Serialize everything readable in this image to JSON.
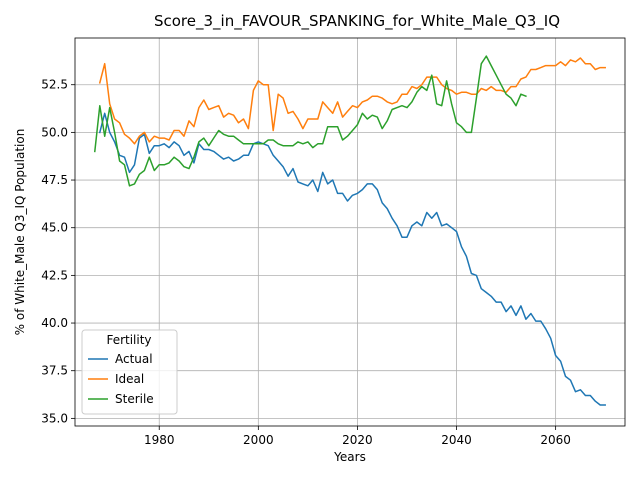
{
  "chart_data": {
    "type": "line",
    "title": "Score_3_in_FAVOUR_SPANKING_for_White_Male_Q3_IQ",
    "xlabel": "Years",
    "ylabel": "% of White_Male Q3_IQ Population",
    "xlim": [
      1963,
      2074
    ],
    "ylim": [
      34.6,
      54.95
    ],
    "xticks": [
      1980,
      2000,
      2020,
      2040,
      2060
    ],
    "xtick_labels": [
      "1980",
      "2000",
      "2020",
      "2040",
      "2060"
    ],
    "yticks": [
      35.0,
      37.5,
      40.0,
      42.5,
      45.0,
      47.5,
      50.0,
      52.5
    ],
    "ytick_labels": [
      "35.0",
      "37.5",
      "40.0",
      "42.5",
      "45.0",
      "47.5",
      "50.0",
      "52.5"
    ],
    "grid": true,
    "legend": {
      "title": "Fertility",
      "placement": "lower-left",
      "entries": [
        "Actual",
        "Ideal",
        "Sterile"
      ]
    },
    "series": [
      {
        "name": "Actual",
        "color": "#1f77b4",
        "x": [
          1968,
          1969,
          1970,
          1971,
          1972,
          1973,
          1974,
          1975,
          1976,
          1977,
          1978,
          1979,
          1980,
          1981,
          1982,
          1983,
          1984,
          1985,
          1986,
          1987,
          1988,
          1989,
          1990,
          1991,
          1992,
          1993,
          1994,
          1995,
          1996,
          1997,
          1998,
          1999,
          2000,
          2001,
          2002,
          2003,
          2004,
          2005,
          2006,
          2007,
          2008,
          2009,
          2010,
          2011,
          2012,
          2013,
          2014,
          2015,
          2016,
          2017,
          2018,
          2019,
          2020,
          2021,
          2022,
          2023,
          2024,
          2025,
          2026,
          2027,
          2028,
          2029,
          2030,
          2031,
          2032,
          2033,
          2034,
          2035,
          2036,
          2037,
          2038,
          2039,
          2040,
          2041,
          2042,
          2043,
          2044,
          2045,
          2046,
          2047,
          2048,
          2049,
          2050,
          2051,
          2052,
          2053,
          2054,
          2055,
          2056,
          2057,
          2058,
          2059,
          2060,
          2061,
          2062,
          2063,
          2064,
          2065,
          2066,
          2067,
          2068,
          2069,
          2070
        ],
        "y": [
          50.0,
          51.0,
          50.0,
          49.5,
          48.8,
          48.7,
          47.9,
          48.3,
          49.7,
          49.9,
          48.9,
          49.3,
          49.3,
          49.4,
          49.2,
          49.5,
          49.3,
          48.8,
          49.0,
          48.4,
          49.4,
          49.1,
          49.1,
          49.0,
          48.8,
          48.6,
          48.7,
          48.5,
          48.6,
          48.8,
          48.8,
          49.4,
          49.5,
          49.4,
          49.3,
          48.8,
          48.5,
          48.2,
          47.7,
          48.1,
          47.4,
          47.3,
          47.2,
          47.5,
          46.9,
          47.9,
          47.3,
          47.5,
          46.8,
          46.8,
          46.4,
          46.7,
          46.8,
          47.0,
          47.3,
          47.3,
          47.0,
          46.3,
          46.0,
          45.5,
          45.1,
          44.5,
          44.5,
          45.1,
          45.3,
          45.1,
          45.8,
          45.5,
          45.8,
          45.1,
          45.2,
          45.0,
          44.8,
          44.0,
          43.5,
          42.6,
          42.5,
          41.8,
          41.6,
          41.4,
          41.1,
          41.1,
          40.6,
          40.9,
          40.4,
          40.9,
          40.2,
          40.5,
          40.1,
          40.1,
          39.7,
          39.2,
          38.3,
          38.0,
          37.2,
          37.0,
          36.4,
          36.5,
          36.2,
          36.2,
          35.9,
          35.7,
          35.7
        ]
      },
      {
        "name": "Ideal",
        "color": "#ff7f0e",
        "x": [
          1968,
          1969,
          1970,
          1971,
          1972,
          1973,
          1974,
          1975,
          1976,
          1977,
          1978,
          1979,
          1980,
          1981,
          1982,
          1983,
          1984,
          1985,
          1986,
          1987,
          1988,
          1989,
          1990,
          1991,
          1992,
          1993,
          1994,
          1995,
          1996,
          1997,
          1998,
          1999,
          2000,
          2001,
          2002,
          2003,
          2004,
          2005,
          2006,
          2007,
          2008,
          2009,
          2010,
          2011,
          2012,
          2013,
          2014,
          2015,
          2016,
          2017,
          2018,
          2019,
          2020,
          2021,
          2022,
          2023,
          2024,
          2025,
          2026,
          2027,
          2028,
          2029,
          2030,
          2031,
          2032,
          2033,
          2034,
          2035,
          2036,
          2037,
          2038,
          2039,
          2040,
          2041,
          2042,
          2043,
          2044,
          2045,
          2046,
          2047,
          2048,
          2049,
          2050,
          2051,
          2052,
          2053,
          2054,
          2055,
          2056,
          2057,
          2058,
          2059,
          2060,
          2061,
          2062,
          2063,
          2064,
          2065,
          2066,
          2067,
          2068,
          2069,
          2070
        ],
        "y": [
          52.6,
          53.6,
          51.5,
          50.7,
          50.5,
          49.9,
          49.7,
          49.4,
          49.8,
          50.0,
          49.5,
          49.8,
          49.7,
          49.7,
          49.6,
          50.1,
          50.1,
          49.8,
          50.6,
          50.3,
          51.3,
          51.7,
          51.2,
          51.3,
          51.4,
          50.8,
          51.0,
          50.9,
          50.5,
          50.7,
          50.2,
          52.2,
          52.7,
          52.5,
          52.5,
          50.1,
          52.0,
          51.8,
          51.0,
          51.1,
          50.7,
          50.2,
          50.7,
          50.7,
          50.7,
          51.6,
          51.3,
          51.0,
          51.6,
          50.8,
          51.1,
          51.4,
          51.3,
          51.6,
          51.7,
          51.9,
          51.9,
          51.8,
          51.6,
          51.5,
          51.6,
          52.0,
          52.0,
          52.4,
          52.3,
          52.5,
          52.9,
          52.9,
          52.9,
          52.5,
          52.3,
          52.2,
          52.0,
          52.1,
          52.1,
          52.0,
          52.0,
          52.3,
          52.2,
          52.4,
          52.2,
          52.2,
          52.1,
          52.4,
          52.4,
          52.8,
          52.9,
          53.3,
          53.3,
          53.4,
          53.5,
          53.5,
          53.5,
          53.7,
          53.5,
          53.8,
          53.7,
          53.9,
          53.6,
          53.6,
          53.3,
          53.4,
          53.4
        ]
      },
      {
        "name": "Sterile",
        "color": "#2ca02c",
        "x": [
          1967,
          1968,
          1969,
          1970,
          1971,
          1972,
          1973,
          1974,
          1975,
          1976,
          1977,
          1978,
          1979,
          1980,
          1981,
          1982,
          1983,
          1984,
          1985,
          1986,
          1987,
          1988,
          1989,
          1990,
          1991,
          1992,
          1993,
          1994,
          1995,
          1996,
          1997,
          1998,
          1999,
          2000,
          2001,
          2002,
          2003,
          2004,
          2005,
          2006,
          2007,
          2008,
          2009,
          2010,
          2011,
          2012,
          2013,
          2014,
          2015,
          2016,
          2017,
          2018,
          2019,
          2020,
          2021,
          2022,
          2023,
          2024,
          2025,
          2026,
          2027,
          2028,
          2029,
          2030,
          2031,
          2032,
          2033,
          2034,
          2035,
          2036,
          2037,
          2038,
          2039,
          2040,
          2041,
          2042,
          2043,
          2044,
          2045,
          2046,
          2047,
          2048,
          2049,
          2050,
          2051,
          2052,
          2053,
          2054
        ],
        "y": [
          49.0,
          51.4,
          49.8,
          51.3,
          50.0,
          48.5,
          48.3,
          47.2,
          47.3,
          47.8,
          48.0,
          48.7,
          48.0,
          48.3,
          48.3,
          48.4,
          48.7,
          48.5,
          48.2,
          48.1,
          48.7,
          49.5,
          49.7,
          49.3,
          49.7,
          50.1,
          49.9,
          49.8,
          49.8,
          49.6,
          49.4,
          49.4,
          49.4,
          49.4,
          49.4,
          49.6,
          49.6,
          49.4,
          49.3,
          49.3,
          49.3,
          49.5,
          49.4,
          49.5,
          49.2,
          49.4,
          49.4,
          50.3,
          50.3,
          50.3,
          49.6,
          49.8,
          50.1,
          50.4,
          51.0,
          50.7,
          50.9,
          50.8,
          50.2,
          50.6,
          51.2,
          51.3,
          51.4,
          51.3,
          51.6,
          52.1,
          52.4,
          52.2,
          53.0,
          51.5,
          51.4,
          52.7,
          51.5,
          50.5,
          50.3,
          50.0,
          50.0,
          51.8,
          53.6,
          54.0,
          53.5,
          53.0,
          52.5,
          52.0,
          51.8,
          51.4,
          52.0,
          51.9
        ]
      }
    ]
  }
}
